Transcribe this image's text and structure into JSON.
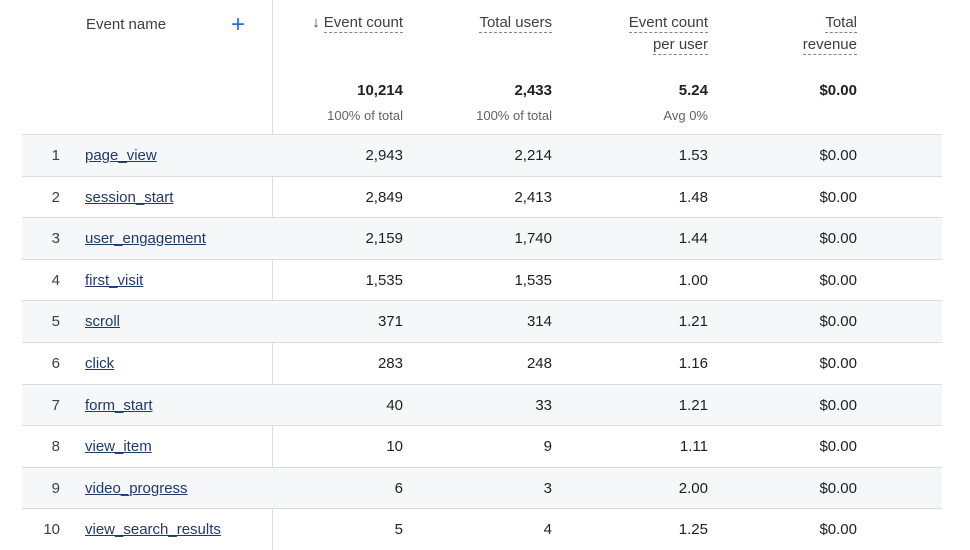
{
  "header": {
    "event_name": "Event name",
    "add_icon": "plus-icon",
    "sort_icon": "arrow-down-icon",
    "event_count": "Event count",
    "total_users": "Total users",
    "event_count_per_user_1": "Event count",
    "event_count_per_user_2": "per user",
    "total_revenue_1": "Total",
    "total_revenue_2": "revenue"
  },
  "totals": {
    "event_count": "10,214",
    "event_count_sub": "100% of total",
    "total_users": "2,433",
    "total_users_sub": "100% of total",
    "per_user": "5.24",
    "per_user_sub": "Avg 0%",
    "revenue": "$0.00"
  },
  "rows": [
    {
      "idx": "1",
      "name": "page_view",
      "count": "2,943",
      "users": "2,214",
      "per_user": "1.53",
      "revenue": "$0.00"
    },
    {
      "idx": "2",
      "name": "session_start",
      "count": "2,849",
      "users": "2,413",
      "per_user": "1.48",
      "revenue": "$0.00"
    },
    {
      "idx": "3",
      "name": "user_engagement",
      "count": "2,159",
      "users": "1,740",
      "per_user": "1.44",
      "revenue": "$0.00"
    },
    {
      "idx": "4",
      "name": "first_visit",
      "count": "1,535",
      "users": "1,535",
      "per_user": "1.00",
      "revenue": "$0.00"
    },
    {
      "idx": "5",
      "name": "scroll",
      "count": "371",
      "users": "314",
      "per_user": "1.21",
      "revenue": "$0.00"
    },
    {
      "idx": "6",
      "name": "click",
      "count": "283",
      "users": "248",
      "per_user": "1.16",
      "revenue": "$0.00"
    },
    {
      "idx": "7",
      "name": "form_start",
      "count": "40",
      "users": "33",
      "per_user": "1.21",
      "revenue": "$0.00"
    },
    {
      "idx": "8",
      "name": "view_item",
      "count": "10",
      "users": "9",
      "per_user": "1.11",
      "revenue": "$0.00"
    },
    {
      "idx": "9",
      "name": "video_progress",
      "count": "6",
      "users": "3",
      "per_user": "2.00",
      "revenue": "$0.00"
    },
    {
      "idx": "10",
      "name": "view_search_results",
      "count": "5",
      "users": "4",
      "per_user": "1.25",
      "revenue": "$0.00"
    }
  ]
}
